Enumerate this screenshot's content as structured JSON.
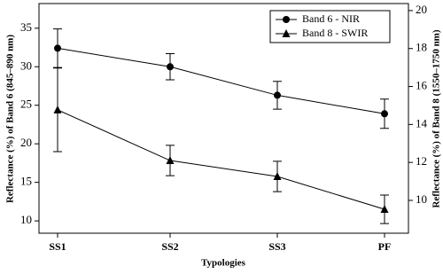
{
  "chart_data": {
    "type": "line",
    "x_label": "Typologies",
    "y_label": "Reflectance (%) of Band 6 (845–890 nm)",
    "y2_label": "Reflectance (%) of Band 8 (1550–1750 nm)",
    "categories": [
      "SS1",
      "SS2",
      "SS3",
      "PF"
    ],
    "ylim": [
      8.4,
      38.2
    ],
    "yticks": [
      10,
      15,
      20,
      25,
      30,
      35
    ],
    "y2lim": [
      8.27,
      20.37
    ],
    "y2ticks": [
      10,
      12,
      14,
      16,
      18,
      20
    ],
    "legend": "upper right",
    "series": [
      {
        "name": "Band 6 - NIR",
        "color": "#000000",
        "marker": "circle",
        "values": [
          32.4,
          30.0,
          26.3,
          23.9
        ],
        "errors": [
          2.5,
          1.7,
          1.8,
          1.9
        ]
      },
      {
        "name": "Band 8 - SWIR",
        "color": "#000000",
        "marker": "triangle",
        "axis": "y2",
        "values": [
          14.77,
          12.1,
          11.26,
          9.53
        ],
        "errors": [
          2.2,
          0.8,
          0.8,
          0.75
        ]
      }
    ]
  }
}
